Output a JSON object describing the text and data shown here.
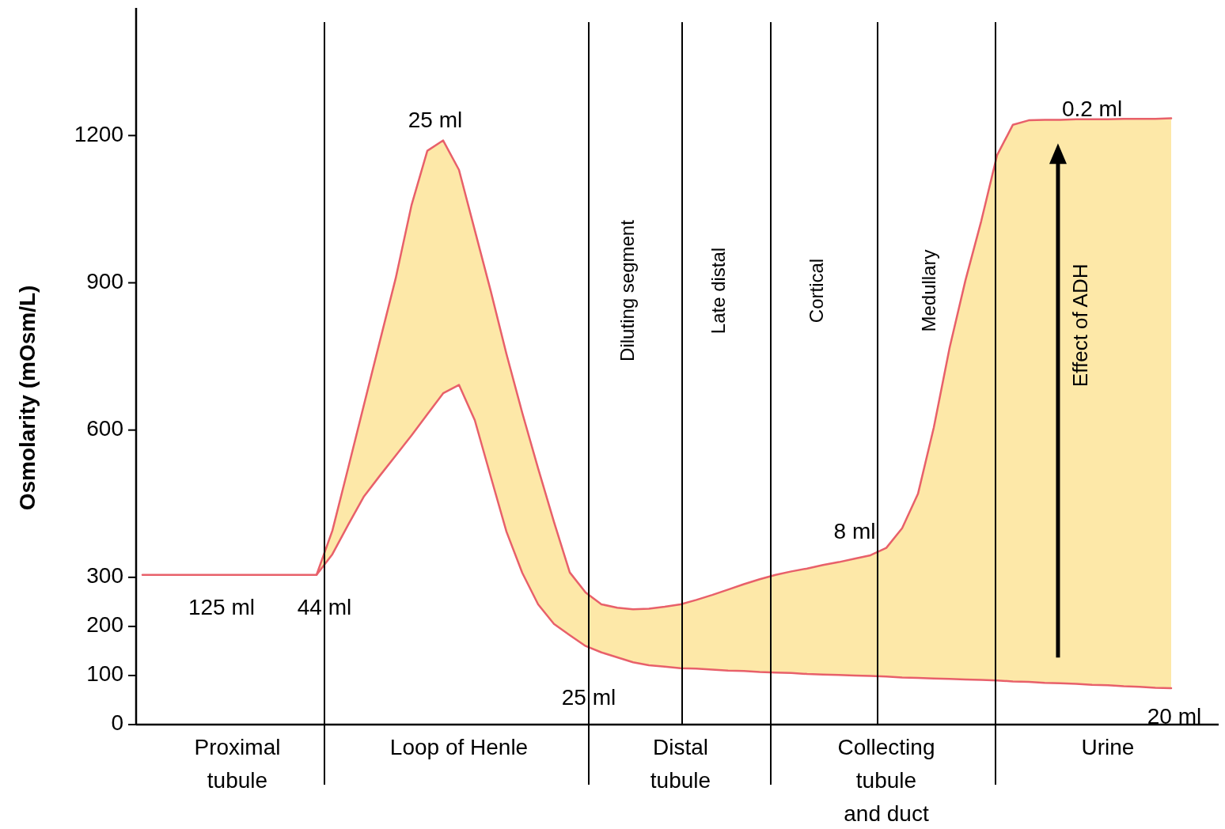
{
  "chart_data": {
    "type": "line",
    "ylabel": "Osmolarity (mOsm/L)",
    "ylim": [
      0,
      1460
    ],
    "yticks": [
      0,
      100,
      200,
      300,
      600,
      900,
      1200
    ],
    "grid": false,
    "marker": "none",
    "line_style": "solid",
    "categories": [
      null,
      null,
      null,
      null,
      null,
      null,
      "Proximal tubule",
      null,
      null,
      null,
      null,
      null,
      null,
      null,
      null,
      null,
      null,
      null,
      null,
      null,
      "Loop of Henle",
      null,
      null,
      null,
      null,
      null,
      null,
      null,
      null,
      null,
      null,
      null,
      null,
      null,
      "Distal tubule",
      null,
      null,
      null,
      null,
      null,
      null,
      null,
      null,
      null,
      null,
      null,
      null,
      "Collecting tubule and duct",
      null,
      null,
      null,
      null,
      null,
      null,
      null,
      null,
      null,
      null,
      null,
      null,
      null,
      "Urine",
      null,
      null,
      null,
      null,
      null,
      null,
      null
    ],
    "series": [
      {
        "color": "#e8606a",
        "values": [
          305,
          305,
          305,
          305,
          305,
          305,
          305,
          305,
          305,
          305,
          305,
          305,
          395,
          523,
          652,
          781,
          909,
          1058,
          1169,
          1190,
          1130,
          1007,
          884,
          755,
          635,
          522,
          413,
          310,
          269,
          245,
          238,
          235,
          236,
          240,
          245,
          254,
          264,
          275,
          286,
          296,
          305,
          312,
          318,
          325,
          331,
          338,
          345,
          360,
          400,
          470,
          605,
          768,
          905,
          1026,
          1160,
          1222,
          1231,
          1232,
          1232,
          1233,
          1233,
          1233,
          1234,
          1234,
          1234,
          1235,
          null,
          null,
          null
        ],
        "upper": [
          305,
          305,
          305,
          305,
          305,
          305,
          305,
          305,
          305,
          305,
          305,
          305,
          395,
          523,
          652,
          781,
          909,
          1058,
          1169,
          1190,
          1130,
          1007,
          884,
          755,
          635,
          522,
          413,
          310,
          269,
          245,
          238,
          235,
          236,
          240,
          245,
          254,
          264,
          275,
          286,
          296,
          305,
          312,
          318,
          325,
          331,
          338,
          345,
          360,
          400,
          470,
          605,
          768,
          905,
          1026,
          1160,
          1222,
          1231,
          1232,
          1232,
          1233,
          1233,
          1233,
          1234,
          1234,
          1234,
          1235,
          null,
          null,
          null
        ],
        "lower": [
          305,
          305,
          305,
          305,
          305,
          305,
          305,
          305,
          305,
          305,
          305,
          305,
          347,
          407,
          465,
          507,
          548,
          589,
          632,
          675,
          692,
          620,
          506,
          393,
          309,
          245,
          205,
          182,
          160,
          147,
          137,
          127,
          121,
          118,
          115,
          114,
          112,
          110,
          109,
          107,
          106,
          105,
          103,
          102,
          101,
          100,
          99,
          98,
          96,
          95,
          94,
          93,
          92,
          91,
          90,
          88,
          87,
          85,
          84,
          83,
          81,
          80,
          78,
          77,
          75,
          74,
          null,
          null,
          null
        ]
      },
      {
        "color": "#e8606a",
        "values": [
          null,
          null,
          null,
          null,
          null,
          null,
          null,
          null,
          null,
          null,
          null,
          305,
          347,
          407,
          465,
          507,
          548,
          589,
          632,
          675,
          692,
          620,
          506,
          393,
          309,
          245,
          205,
          182,
          160,
          147,
          137,
          127,
          121,
          118,
          115,
          114,
          112,
          110,
          109,
          107,
          106,
          105,
          103,
          102,
          101,
          100,
          99,
          98,
          96,
          95,
          94,
          93,
          92,
          91,
          90,
          88,
          87,
          85,
          84,
          83,
          81,
          80,
          78,
          77,
          75,
          74,
          null,
          null,
          null
        ]
      }
    ],
    "annotations": [
      "125 ml",
      "44 ml",
      "25 ml",
      "25 ml",
      "8 ml",
      "0.2 ml",
      "20 ml",
      "Diluting segment",
      "Late distal",
      "Cortical",
      "Medullary",
      "Effect of ADH"
    ]
  }
}
